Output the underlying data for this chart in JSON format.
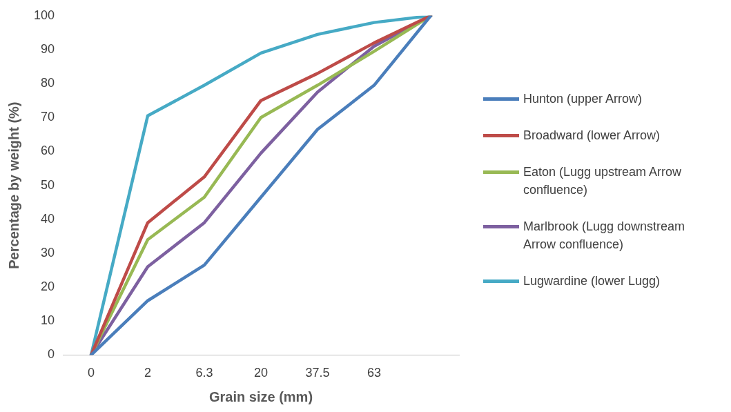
{
  "chart_data": {
    "type": "line",
    "xlabel": "Grain size (mm)",
    "ylabel": "Percentage by weight (%)",
    "categories": [
      "0",
      "2",
      "6.3",
      "20",
      "37.5",
      "63",
      null
    ],
    "ylim": [
      0,
      100
    ],
    "yticks": [
      0,
      10,
      20,
      30,
      40,
      50,
      60,
      70,
      80,
      90,
      100
    ],
    "grid": false,
    "legend": "right",
    "marker": "none",
    "line_style": "solid",
    "series": [
      {
        "name": "Hunton (upper Arrow)",
        "color": "#4a7ebb",
        "values": [
          0,
          16,
          26.5,
          46.5,
          66.5,
          79.5,
          100
        ]
      },
      {
        "name": "Broadward (lower Arrow)",
        "color": "#be4b48",
        "values": [
          0,
          39,
          52.5,
          75,
          83,
          92,
          100
        ]
      },
      {
        "name": "Eaton (Lugg upstream Arrow confluence)",
        "color": "#98b954",
        "values": [
          0,
          34,
          46.5,
          70,
          79.5,
          89.5,
          100
        ]
      },
      {
        "name": "Marlbrook (Lugg downstream Arrow confluence)",
        "color": "#7d60a0",
        "values": [
          0,
          26,
          39,
          59.5,
          77.5,
          91,
          100
        ]
      },
      {
        "name": "Lugwardine (lower Lugg)",
        "color": "#46aac5",
        "values": [
          0,
          70.5,
          79.5,
          89,
          94.5,
          98,
          100
        ]
      }
    ]
  }
}
